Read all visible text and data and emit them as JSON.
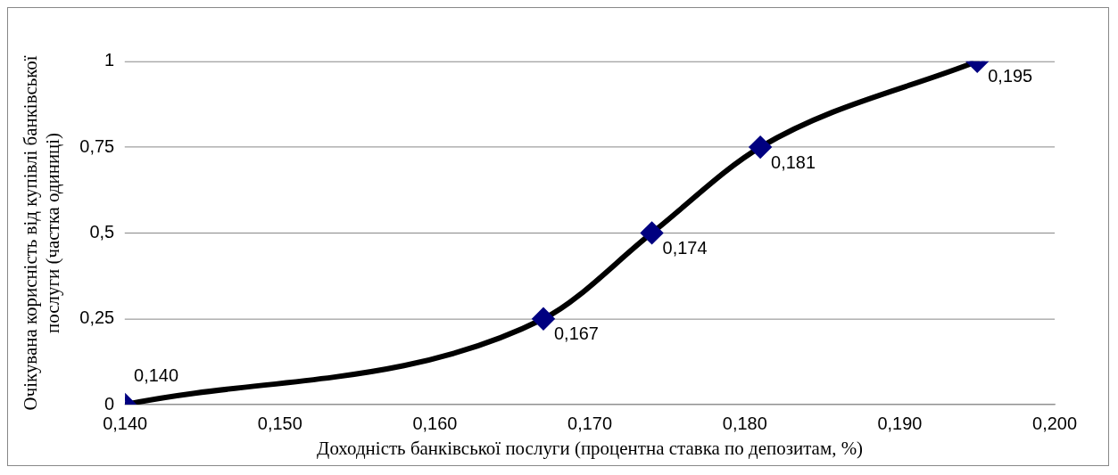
{
  "chart_data": {
    "type": "line",
    "xlabel": "Доходність банківської послуги (процентна ставка по депозитам, %)",
    "ylabel": "Очікувана корисність від купівлі банківської послуги (частка одиниці)",
    "x": [
      0.14,
      0.167,
      0.174,
      0.181,
      0.195
    ],
    "series": [
      {
        "color": "#000000",
        "colors": [
          "#000080",
          "#000080",
          "#000080",
          "#000080",
          "#000080"
        ],
        "values": [
          0,
          0.25,
          0.5,
          0.75,
          1
        ]
      }
    ],
    "marker": "diamond",
    "line_style": "solid",
    "grid": "y",
    "legend": false,
    "xlim": [
      0.14,
      0.2
    ],
    "xticks": [
      {
        "value": 0.14,
        "label": "0,140"
      },
      {
        "value": 0.15,
        "label": "0,150"
      },
      {
        "value": 0.16,
        "label": "0,160"
      },
      {
        "value": 0.17,
        "label": "0,170"
      },
      {
        "value": 0.18,
        "label": "0,180"
      },
      {
        "value": 0.19,
        "label": "0,190"
      },
      {
        "value": 0.2,
        "label": "0,200"
      }
    ],
    "ylim": [
      0,
      1
    ],
    "yticks": [
      0,
      {
        "value": 0.25,
        "label": "0,25"
      },
      {
        "value": 0.5,
        "label": "0,5"
      },
      {
        "value": 0.75,
        "label": "0,75"
      },
      1
    ],
    "annotations": [
      {
        "text": "0,140",
        "x": 0.14,
        "y": 0
      },
      {
        "text": "0,167",
        "x": 0.167,
        "y": 0.25
      },
      {
        "text": "0,174",
        "x": 0.174,
        "y": 0.5
      },
      {
        "text": "0,181",
        "x": 0.181,
        "y": 0.75
      },
      {
        "text": "0,195",
        "x": 0.195,
        "y": 1
      }
    ]
  }
}
